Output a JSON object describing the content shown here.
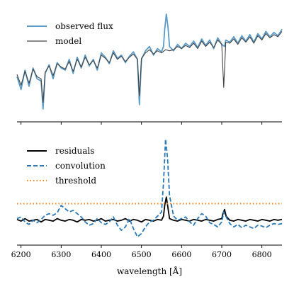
{
  "chart_data": [
    {
      "type": "line",
      "xlim": [
        6190,
        6850
      ],
      "ylim": [
        0.0,
        1.0
      ],
      "ytick_labels": false,
      "grid": false,
      "legend": "top-left",
      "series": [
        {
          "name": "observed flux",
          "color": "#5b9bc8",
          "x": [
            6190,
            6200,
            6210,
            6220,
            6230,
            6240,
            6250,
            6255,
            6260,
            6270,
            6280,
            6290,
            6300,
            6310,
            6320,
            6330,
            6340,
            6350,
            6360,
            6370,
            6380,
            6390,
            6400,
            6410,
            6420,
            6430,
            6440,
            6450,
            6460,
            6470,
            6480,
            6490,
            6495,
            6500,
            6510,
            6520,
            6530,
            6540,
            6550,
            6555,
            6558,
            6562,
            6566,
            6570,
            6580,
            6590,
            6600,
            6610,
            6620,
            6630,
            6640,
            6650,
            6660,
            6670,
            6680,
            6690,
            6700,
            6707,
            6710,
            6720,
            6730,
            6740,
            6750,
            6760,
            6770,
            6780,
            6790,
            6800,
            6810,
            6820,
            6830,
            6840,
            6850
          ],
          "y": [
            0.42,
            0.3,
            0.48,
            0.33,
            0.5,
            0.4,
            0.38,
            0.12,
            0.45,
            0.53,
            0.4,
            0.55,
            0.5,
            0.48,
            0.58,
            0.45,
            0.6,
            0.5,
            0.62,
            0.52,
            0.58,
            0.48,
            0.64,
            0.6,
            0.54,
            0.66,
            0.59,
            0.62,
            0.55,
            0.61,
            0.65,
            0.58,
            0.16,
            0.58,
            0.66,
            0.7,
            0.62,
            0.68,
            0.65,
            0.7,
            0.86,
            1.0,
            0.88,
            0.7,
            0.66,
            0.72,
            0.68,
            0.73,
            0.7,
            0.75,
            0.69,
            0.77,
            0.71,
            0.76,
            0.68,
            0.78,
            0.72,
            0.7,
            0.76,
            0.74,
            0.79,
            0.73,
            0.8,
            0.75,
            0.81,
            0.74,
            0.82,
            0.77,
            0.84,
            0.79,
            0.83,
            0.8,
            0.86
          ]
        },
        {
          "name": "model",
          "color": "#444444",
          "x": [
            6190,
            6200,
            6210,
            6220,
            6230,
            6240,
            6250,
            6255,
            6260,
            6270,
            6280,
            6290,
            6300,
            6310,
            6320,
            6330,
            6340,
            6350,
            6360,
            6370,
            6380,
            6390,
            6400,
            6410,
            6420,
            6430,
            6440,
            6450,
            6460,
            6470,
            6480,
            6490,
            6495,
            6500,
            6510,
            6520,
            6530,
            6540,
            6550,
            6560,
            6570,
            6580,
            6590,
            6600,
            6610,
            6620,
            6630,
            6640,
            6650,
            6660,
            6670,
            6680,
            6690,
            6700,
            6705,
            6710,
            6720,
            6730,
            6740,
            6750,
            6760,
            6770,
            6780,
            6790,
            6800,
            6810,
            6820,
            6830,
            6840,
            6850
          ],
          "y": [
            0.44,
            0.34,
            0.47,
            0.36,
            0.49,
            0.42,
            0.4,
            0.18,
            0.46,
            0.52,
            0.43,
            0.54,
            0.51,
            0.49,
            0.56,
            0.47,
            0.58,
            0.51,
            0.6,
            0.53,
            0.57,
            0.5,
            0.62,
            0.59,
            0.55,
            0.64,
            0.58,
            0.61,
            0.56,
            0.6,
            0.63,
            0.58,
            0.24,
            0.59,
            0.64,
            0.67,
            0.63,
            0.66,
            0.64,
            0.67,
            0.66,
            0.67,
            0.7,
            0.68,
            0.71,
            0.69,
            0.73,
            0.68,
            0.75,
            0.7,
            0.74,
            0.69,
            0.76,
            0.72,
            0.32,
            0.74,
            0.73,
            0.77,
            0.72,
            0.78,
            0.74,
            0.79,
            0.73,
            0.8,
            0.76,
            0.82,
            0.78,
            0.81,
            0.79,
            0.84
          ]
        }
      ]
    },
    {
      "type": "line",
      "xlim": [
        6190,
        6850
      ],
      "ylim": [
        -0.3,
        1.0
      ],
      "xlabel": "wavelength [Å]",
      "xticks": [
        6200,
        6300,
        6400,
        6500,
        6600,
        6700,
        6800
      ],
      "xtick_labels": [
        "6200",
        "6300",
        "6400",
        "6500",
        "6600",
        "6700",
        "6800"
      ],
      "ytick_labels": false,
      "grid": false,
      "legend": "top-left",
      "series": [
        {
          "name": "residuals",
          "color": "#000000",
          "style": "solid",
          "x": [
            6190,
            6200,
            6210,
            6220,
            6230,
            6240,
            6250,
            6260,
            6270,
            6280,
            6290,
            6300,
            6310,
            6320,
            6330,
            6340,
            6350,
            6360,
            6370,
            6380,
            6390,
            6400,
            6410,
            6420,
            6430,
            6440,
            6450,
            6460,
            6470,
            6480,
            6490,
            6500,
            6510,
            6520,
            6530,
            6540,
            6550,
            6555,
            6558,
            6562,
            6566,
            6570,
            6580,
            6590,
            6600,
            6610,
            6620,
            6630,
            6640,
            6650,
            6660,
            6670,
            6680,
            6690,
            6700,
            6703,
            6707,
            6711,
            6720,
            6730,
            6740,
            6750,
            6760,
            6770,
            6780,
            6790,
            6800,
            6810,
            6820,
            6830,
            6840,
            6850
          ],
          "y": [
            0.01,
            -0.01,
            0.02,
            -0.01,
            0.0,
            0.01,
            -0.02,
            0.01,
            0.0,
            -0.01,
            0.02,
            0.0,
            -0.01,
            0.01,
            0.0,
            -0.02,
            0.01,
            0.0,
            0.01,
            -0.01,
            0.0,
            0.02,
            -0.01,
            0.0,
            0.01,
            -0.01,
            0.0,
            0.02,
            -0.01,
            0.01,
            0.0,
            -0.02,
            0.01,
            0.0,
            -0.01,
            0.01,
            0.0,
            0.05,
            0.18,
            0.28,
            0.15,
            0.02,
            0.0,
            -0.01,
            0.01,
            0.0,
            -0.01,
            0.01,
            0.0,
            -0.01,
            0.01,
            0.0,
            -0.01,
            0.01,
            0.02,
            0.08,
            0.13,
            0.05,
            0.0,
            -0.01,
            0.01,
            0.0,
            -0.01,
            0.01,
            0.0,
            -0.01,
            0.01,
            0.0,
            -0.01,
            0.01,
            0.0,
            0.01
          ]
        },
        {
          "name": "convolution",
          "color": "#2a78b5",
          "style": "dashed",
          "x": [
            6190,
            6200,
            6210,
            6220,
            6230,
            6240,
            6250,
            6260,
            6270,
            6280,
            6290,
            6300,
            6310,
            6320,
            6330,
            6340,
            6350,
            6360,
            6370,
            6380,
            6390,
            6400,
            6410,
            6420,
            6430,
            6440,
            6450,
            6460,
            6470,
            6480,
            6490,
            6500,
            6510,
            6520,
            6530,
            6540,
            6550,
            6555,
            6560,
            6565,
            6570,
            6580,
            6590,
            6600,
            6610,
            6620,
            6630,
            6640,
            6650,
            6660,
            6670,
            6680,
            6690,
            6700,
            6705,
            6710,
            6720,
            6730,
            6740,
            6750,
            6760,
            6770,
            6780,
            6790,
            6800,
            6810,
            6820,
            6830,
            6840,
            6850
          ],
          "y": [
            0.02,
            0.04,
            -0.02,
            -0.05,
            0.0,
            -0.03,
            0.01,
            0.06,
            0.08,
            0.06,
            0.09,
            0.18,
            0.14,
            0.1,
            0.12,
            0.08,
            0.04,
            -0.02,
            -0.06,
            -0.04,
            0.02,
            -0.03,
            -0.05,
            -0.02,
            0.04,
            -0.06,
            -0.12,
            -0.08,
            0.02,
            -0.1,
            -0.2,
            -0.16,
            -0.08,
            -0.02,
            0.0,
            0.05,
            0.1,
            0.45,
            0.98,
            0.75,
            0.3,
            0.05,
            0.0,
            0.02,
            0.04,
            -0.02,
            -0.06,
            0.02,
            0.08,
            0.05,
            -0.03,
            -0.05,
            -0.08,
            -0.02,
            0.1,
            0.05,
            -0.04,
            -0.08,
            -0.05,
            -0.09,
            -0.06,
            -0.08,
            -0.1,
            -0.06,
            -0.07,
            -0.09,
            -0.06,
            -0.04,
            -0.05,
            -0.04
          ]
        },
        {
          "name": "threshold",
          "color": "#ff7f0e",
          "style": "dotted",
          "x": [
            6190,
            6850
          ],
          "y": [
            0.2,
            0.2
          ]
        }
      ]
    }
  ]
}
